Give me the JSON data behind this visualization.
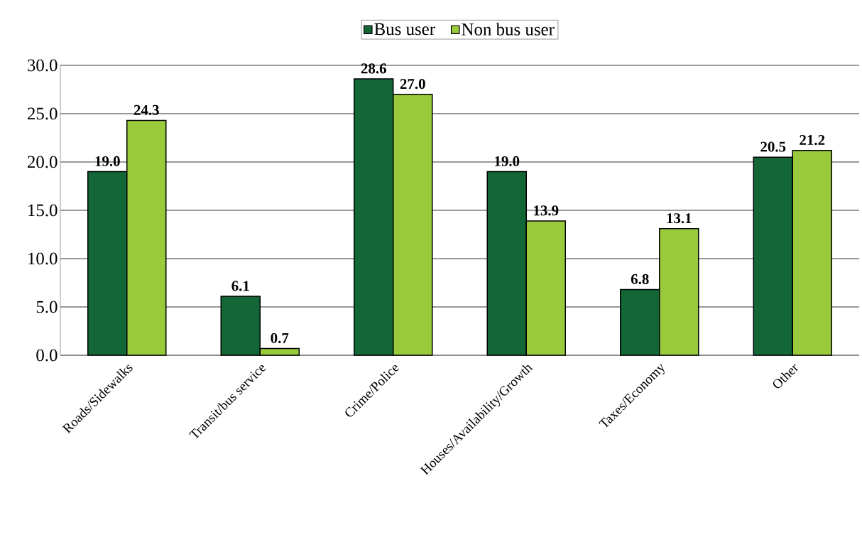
{
  "chart_data": {
    "type": "bar",
    "categories": [
      "Roads/Sidewalks",
      "Transit/bus service",
      "Crime/Police",
      "Houses/Availability/Growth",
      "Taxes/Economy",
      "Other"
    ],
    "series": [
      {
        "name": "Bus user",
        "color": "#136636",
        "values": [
          19.0,
          6.1,
          28.6,
          19.0,
          6.8,
          20.5
        ],
        "value_labels": [
          "19.0",
          "6.1",
          "28.6",
          "19.0",
          "6.8",
          "20.5"
        ]
      },
      {
        "name": "Non bus user",
        "color": "#99ca3c",
        "values": [
          24.3,
          0.7,
          27.0,
          13.9,
          13.1,
          21.2
        ],
        "value_labels": [
          "24.3",
          "0.7",
          "27.0",
          "13.9",
          "13.1",
          "21.2"
        ]
      }
    ],
    "ylim": [
      0,
      30
    ],
    "yticks": [
      {
        "value": 0,
        "label": "0.0"
      },
      {
        "value": 5,
        "label": "5.0"
      },
      {
        "value": 10,
        "label": "10.0"
      },
      {
        "value": 15,
        "label": "15.0"
      },
      {
        "value": 20,
        "label": "20.0"
      },
      {
        "value": 25,
        "label": "25.0"
      },
      {
        "value": 30,
        "label": "30.0"
      }
    ],
    "grid": "y",
    "legend": "top"
  }
}
